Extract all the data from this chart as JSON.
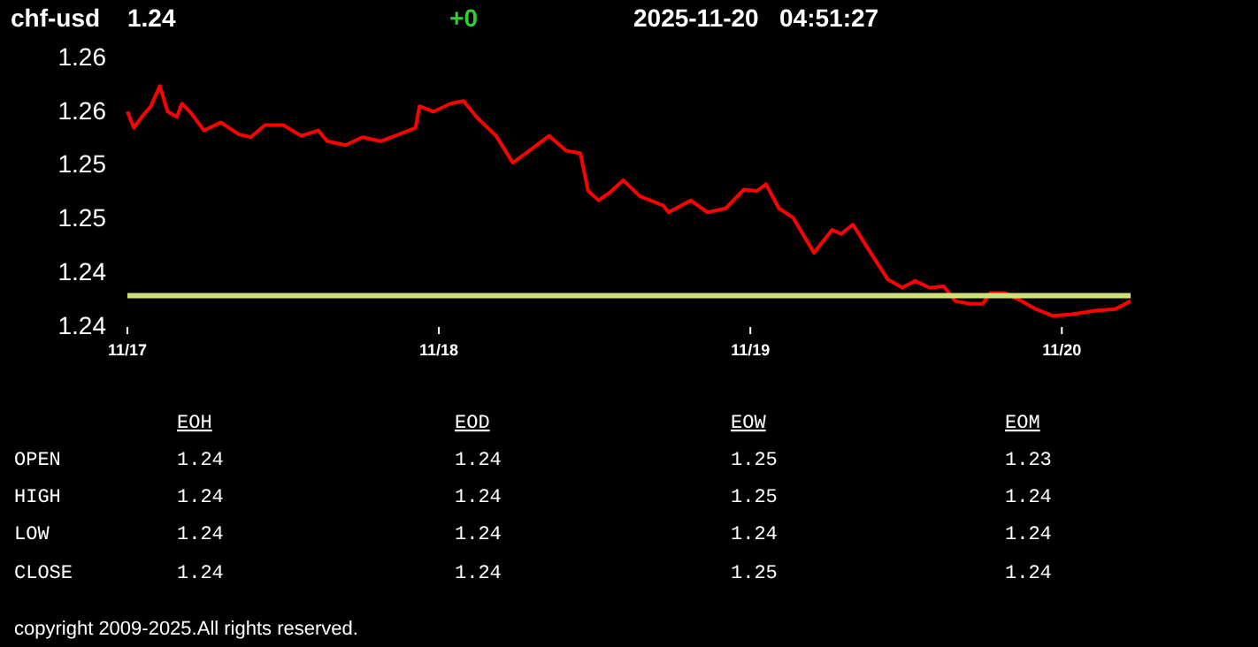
{
  "chart_data": [
    {
      "type": "line",
      "title": "chf-usd",
      "subtitle": "1.24",
      "annotations": [
        "+0",
        "2025-11-20   04:51:27",
        "copyright 2009-2025.All rights reserved."
      ],
      "x": [
        "2025-11-17T00:00",
        "2025-11-17T00:30",
        "2025-11-17T01:06",
        "2025-11-17T01:48",
        "2025-11-17T02:30",
        "2025-11-17T03:06",
        "2025-11-17T03:48",
        "2025-11-17T04:12",
        "2025-11-17T04:54",
        "2025-11-17T05:54",
        "2025-11-17T07:12",
        "2025-11-17T08:36",
        "2025-11-17T09:30",
        "2025-11-17T10:36",
        "2025-11-17T12:00",
        "2025-11-17T13:24",
        "2025-11-17T14:42",
        "2025-11-17T15:24",
        "2025-11-17T16:48",
        "2025-11-17T18:06",
        "2025-11-17T19:30",
        "2025-11-17T20:54",
        "2025-11-17T22:12",
        "2025-11-17T22:30",
        "2025-11-17T23:36",
        "2025-11-18T00:54",
        "2025-11-18T01:54",
        "2025-11-18T03:00",
        "2025-11-18T04:24",
        "2025-11-18T05:42",
        "2025-11-18T06:42",
        "2025-11-18T07:48",
        "2025-11-18T08:30",
        "2025-11-18T09:48",
        "2025-11-18T10:54",
        "2025-11-18T11:30",
        "2025-11-18T12:18",
        "2025-11-18T13:12",
        "2025-11-18T14:12",
        "2025-11-18T15:30",
        "2025-11-18T17:18",
        "2025-11-18T17:42",
        "2025-11-18T19:24",
        "2025-11-18T20:42",
        "2025-11-18T22:06",
        "2025-11-18T23:30",
        "2025-11-19T00:30",
        "2025-11-19T01:12",
        "2025-11-19T02:12",
        "2025-11-19T03:18",
        "2025-11-19T04:54",
        "2025-11-19T06:18",
        "2025-11-19T07:00",
        "2025-11-19T07:54",
        "2025-11-19T09:00",
        "2025-11-19T10:36",
        "2025-11-19T11:42",
        "2025-11-19T12:42",
        "2025-11-19T13:48",
        "2025-11-19T14:54",
        "2025-11-19T15:48",
        "2025-11-19T16:54",
        "2025-11-19T17:54",
        "2025-11-19T18:30",
        "2025-11-19T19:36",
        "2025-11-19T20:54",
        "2025-11-19T22:00",
        "2025-11-19T23:18",
        "2025-11-20T00:42",
        "2025-11-20T02:42",
        "2025-11-20T04:06",
        "2025-11-20T05:18"
      ],
      "series": [
        {
          "color": "#ff0000",
          "values": [
            1.2559,
            1.2547,
            1.2555,
            1.2563,
            1.2578,
            1.2559,
            1.2555,
            1.2565,
            1.2558,
            1.2545,
            1.2551,
            1.2542,
            1.254,
            1.2549,
            1.2549,
            1.2541,
            1.2545,
            1.2537,
            1.2534,
            1.254,
            1.2537,
            1.2542,
            1.2547,
            1.2563,
            1.2559,
            1.2565,
            1.2567,
            1.2554,
            1.2541,
            1.2521,
            1.2528,
            1.2536,
            1.2541,
            1.253,
            1.2528,
            1.25,
            1.2493,
            1.2499,
            1.2508,
            1.2496,
            1.2489,
            1.2484,
            1.2493,
            1.2484,
            1.2487,
            1.2501,
            1.25,
            1.2505,
            1.2487,
            1.248,
            1.2454,
            1.2471,
            1.2468,
            1.2475,
            1.2458,
            1.2434,
            1.2428,
            1.2433,
            1.2428,
            1.2429,
            1.2418,
            1.2416,
            1.2416,
            1.2424,
            1.2424,
            1.2418,
            1.2412,
            1.2407,
            1.2408,
            1.2411,
            1.2412,
            1.2418
          ]
        }
      ],
      "xlim": [
        "2025-11-17T00:00",
        "2025-11-20T05:18"
      ],
      "xticks": [
        {
          "value": "2025-11-17",
          "label": "11/17"
        },
        {
          "value": "2025-11-18",
          "label": "11/18"
        },
        {
          "value": "2025-11-19",
          "label": "11/19"
        },
        {
          "value": "2025-11-20",
          "label": "11/20"
        }
      ],
      "ylim": [
        1.24,
        1.26
      ],
      "yticks": [
        {
          "value": 1.24,
          "label": "1.24"
        },
        {
          "value": 1.244,
          "label": "1.24"
        },
        {
          "value": 1.248,
          "label": "1.25"
        },
        {
          "value": 1.252,
          "label": "1.25"
        },
        {
          "value": 1.256,
          "label": "1.26"
        },
        {
          "value": 1.26,
          "label": "1.26"
        }
      ],
      "ref_lines": [
        {
          "axis": "y",
          "value": 1.2422,
          "color": "#cfe07a"
        }
      ],
      "grid": false
    },
    {
      "type": "other",
      "categories": [
        "EOH",
        "EOD",
        "EOW",
        "EOM"
      ],
      "y_categories": [
        "OPEN",
        "HIGH",
        "LOW",
        "CLOSE"
      ],
      "cell_labels": [
        [
          "1.24",
          "1.24",
          "1.25",
          "1.23"
        ],
        [
          "1.24",
          "1.24",
          "1.25",
          "1.24"
        ],
        [
          "1.24",
          "1.24",
          "1.24",
          "1.24"
        ],
        [
          "1.24",
          "1.24",
          "1.25",
          "1.24"
        ]
      ]
    }
  ]
}
